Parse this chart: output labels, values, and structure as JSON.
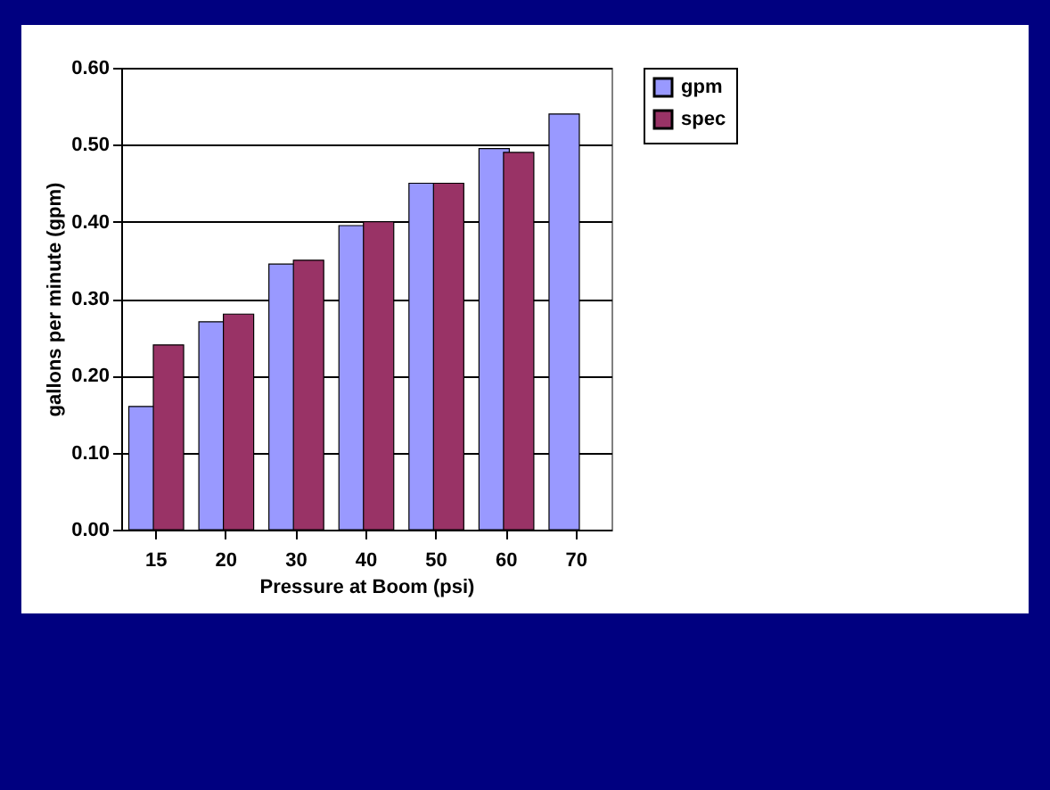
{
  "chart_data": {
    "type": "bar",
    "xlabel": "Pressure at Boom (psi)",
    "ylabel": "gallons per minute (gpm)",
    "categories": [
      "15",
      "20",
      "30",
      "40",
      "50",
      "60",
      "70"
    ],
    "series": [
      {
        "name": "gpm",
        "color": "#9999ff",
        "values": [
          0.16,
          0.27,
          0.345,
          0.395,
          0.45,
          0.495,
          0.54
        ]
      },
      {
        "name": "spec",
        "color": "#993366",
        "values": [
          0.24,
          0.28,
          0.35,
          0.4,
          0.45,
          0.49,
          null
        ]
      }
    ],
    "ylim": [
      0,
      0.6
    ],
    "yticks": [
      {
        "value": 0,
        "label": "0.00"
      },
      {
        "value": 0.1,
        "label": "0.10"
      },
      {
        "value": 0.2,
        "label": "0.20"
      },
      {
        "value": 0.3,
        "label": "0.30"
      },
      {
        "value": 0.4,
        "label": "0.40"
      },
      {
        "value": 0.5,
        "label": "0.50"
      },
      {
        "value": 0.6,
        "label": "0.60"
      }
    ],
    "grid": "y",
    "legend": "right"
  }
}
